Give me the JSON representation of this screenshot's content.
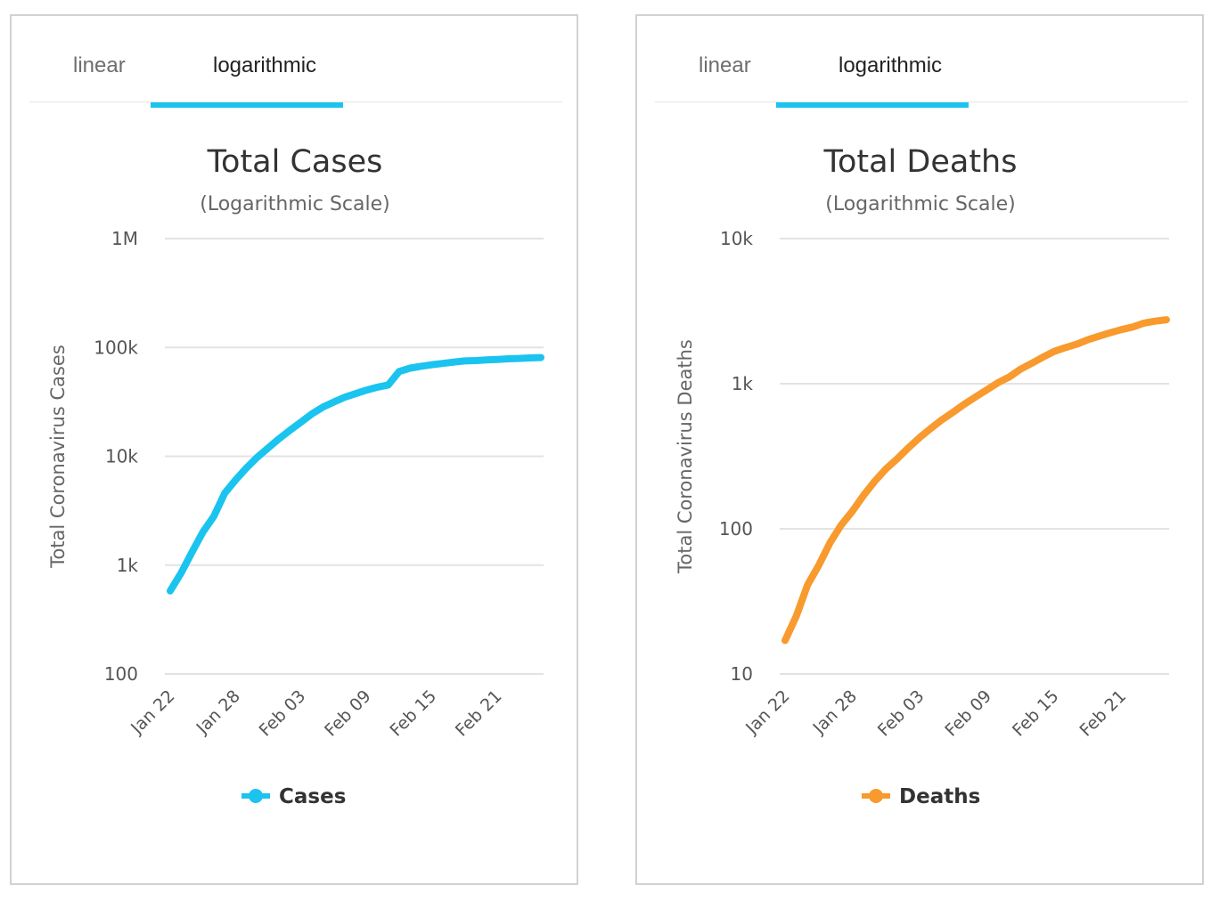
{
  "panels": [
    {
      "id": "cases",
      "tabs": {
        "linear": "linear",
        "log": "logarithmic",
        "active": "log"
      },
      "chart_data": {
        "type": "line",
        "title": "Total Cases",
        "subtitle": "(Logarithmic Scale)",
        "ylabel": "Total Coronavirus Cases",
        "xlabel": "",
        "yscale": "log",
        "ylim": [
          100,
          1000000
        ],
        "yticks": [
          {
            "value": 100,
            "label": "100"
          },
          {
            "value": 1000,
            "label": "1k"
          },
          {
            "value": 10000,
            "label": "10k"
          },
          {
            "value": 100000,
            "label": "100k"
          },
          {
            "value": 1000000,
            "label": "1M"
          }
        ],
        "xticks": [
          "Jan 22",
          "Jan 28",
          "Feb 03",
          "Feb 09",
          "Feb 15",
          "Feb 21"
        ],
        "x": [
          "Jan 22",
          "Jan 23",
          "Jan 24",
          "Jan 25",
          "Jan 26",
          "Jan 27",
          "Jan 28",
          "Jan 29",
          "Jan 30",
          "Jan 31",
          "Feb 01",
          "Feb 02",
          "Feb 03",
          "Feb 04",
          "Feb 05",
          "Feb 06",
          "Feb 07",
          "Feb 08",
          "Feb 09",
          "Feb 10",
          "Feb 11",
          "Feb 12",
          "Feb 13",
          "Feb 14",
          "Feb 15",
          "Feb 16",
          "Feb 17",
          "Feb 18",
          "Feb 19",
          "Feb 20",
          "Feb 21",
          "Feb 22",
          "Feb 23",
          "Feb 24",
          "Feb 25"
        ],
        "grid": true,
        "legend_position": "bottom-center",
        "series": [
          {
            "name": "Cases",
            "color": "#1ac4ef",
            "values": [
              580,
              845,
              1317,
              2015,
              2800,
              4581,
              6058,
              7813,
              9823,
              11950,
              14553,
              17391,
              20630,
              24554,
              28276,
              31481,
              34886,
              37558,
              40554,
              43103,
              45171,
              60092,
              64543,
              67103,
              69265,
              71332,
              73327,
              75184,
              75700,
              76677,
              77673,
              78651,
              79205,
              80087,
              80828
            ]
          }
        ]
      }
    },
    {
      "id": "deaths",
      "tabs": {
        "linear": "linear",
        "log": "logarithmic",
        "active": "log"
      },
      "chart_data": {
        "type": "line",
        "title": "Total Deaths",
        "subtitle": "(Logarithmic Scale)",
        "ylabel": "Total Coronavirus Deaths",
        "xlabel": "",
        "yscale": "log",
        "ylim": [
          10,
          10000
        ],
        "yticks": [
          {
            "value": 10,
            "label": "10"
          },
          {
            "value": 100,
            "label": "100"
          },
          {
            "value": 1000,
            "label": "1k"
          },
          {
            "value": 10000,
            "label": "10k"
          }
        ],
        "xticks": [
          "Jan 22",
          "Jan 28",
          "Feb 03",
          "Feb 09",
          "Feb 15",
          "Feb 21"
        ],
        "x": [
          "Jan 22",
          "Jan 23",
          "Jan 24",
          "Jan 25",
          "Jan 26",
          "Jan 27",
          "Jan 28",
          "Jan 29",
          "Jan 30",
          "Jan 31",
          "Feb 01",
          "Feb 02",
          "Feb 03",
          "Feb 04",
          "Feb 05",
          "Feb 06",
          "Feb 07",
          "Feb 08",
          "Feb 09",
          "Feb 10",
          "Feb 11",
          "Feb 12",
          "Feb 13",
          "Feb 14",
          "Feb 15",
          "Feb 16",
          "Feb 17",
          "Feb 18",
          "Feb 19",
          "Feb 20",
          "Feb 21",
          "Feb 22",
          "Feb 23",
          "Feb 24",
          "Feb 25"
        ],
        "grid": true,
        "legend_position": "bottom-center",
        "series": [
          {
            "name": "Deaths",
            "color": "#f89a2e",
            "values": [
              17,
              25,
              41,
              56,
              80,
              106,
              132,
              170,
              213,
              259,
              304,
              362,
              426,
              492,
              565,
              638,
              724,
              813,
              910,
              1018,
              1115,
              1261,
              1383,
              1526,
              1669,
              1775,
              1873,
              2009,
              2126,
              2247,
              2360,
              2460,
              2618,
              2699,
              2763
            ]
          }
        ]
      }
    }
  ]
}
